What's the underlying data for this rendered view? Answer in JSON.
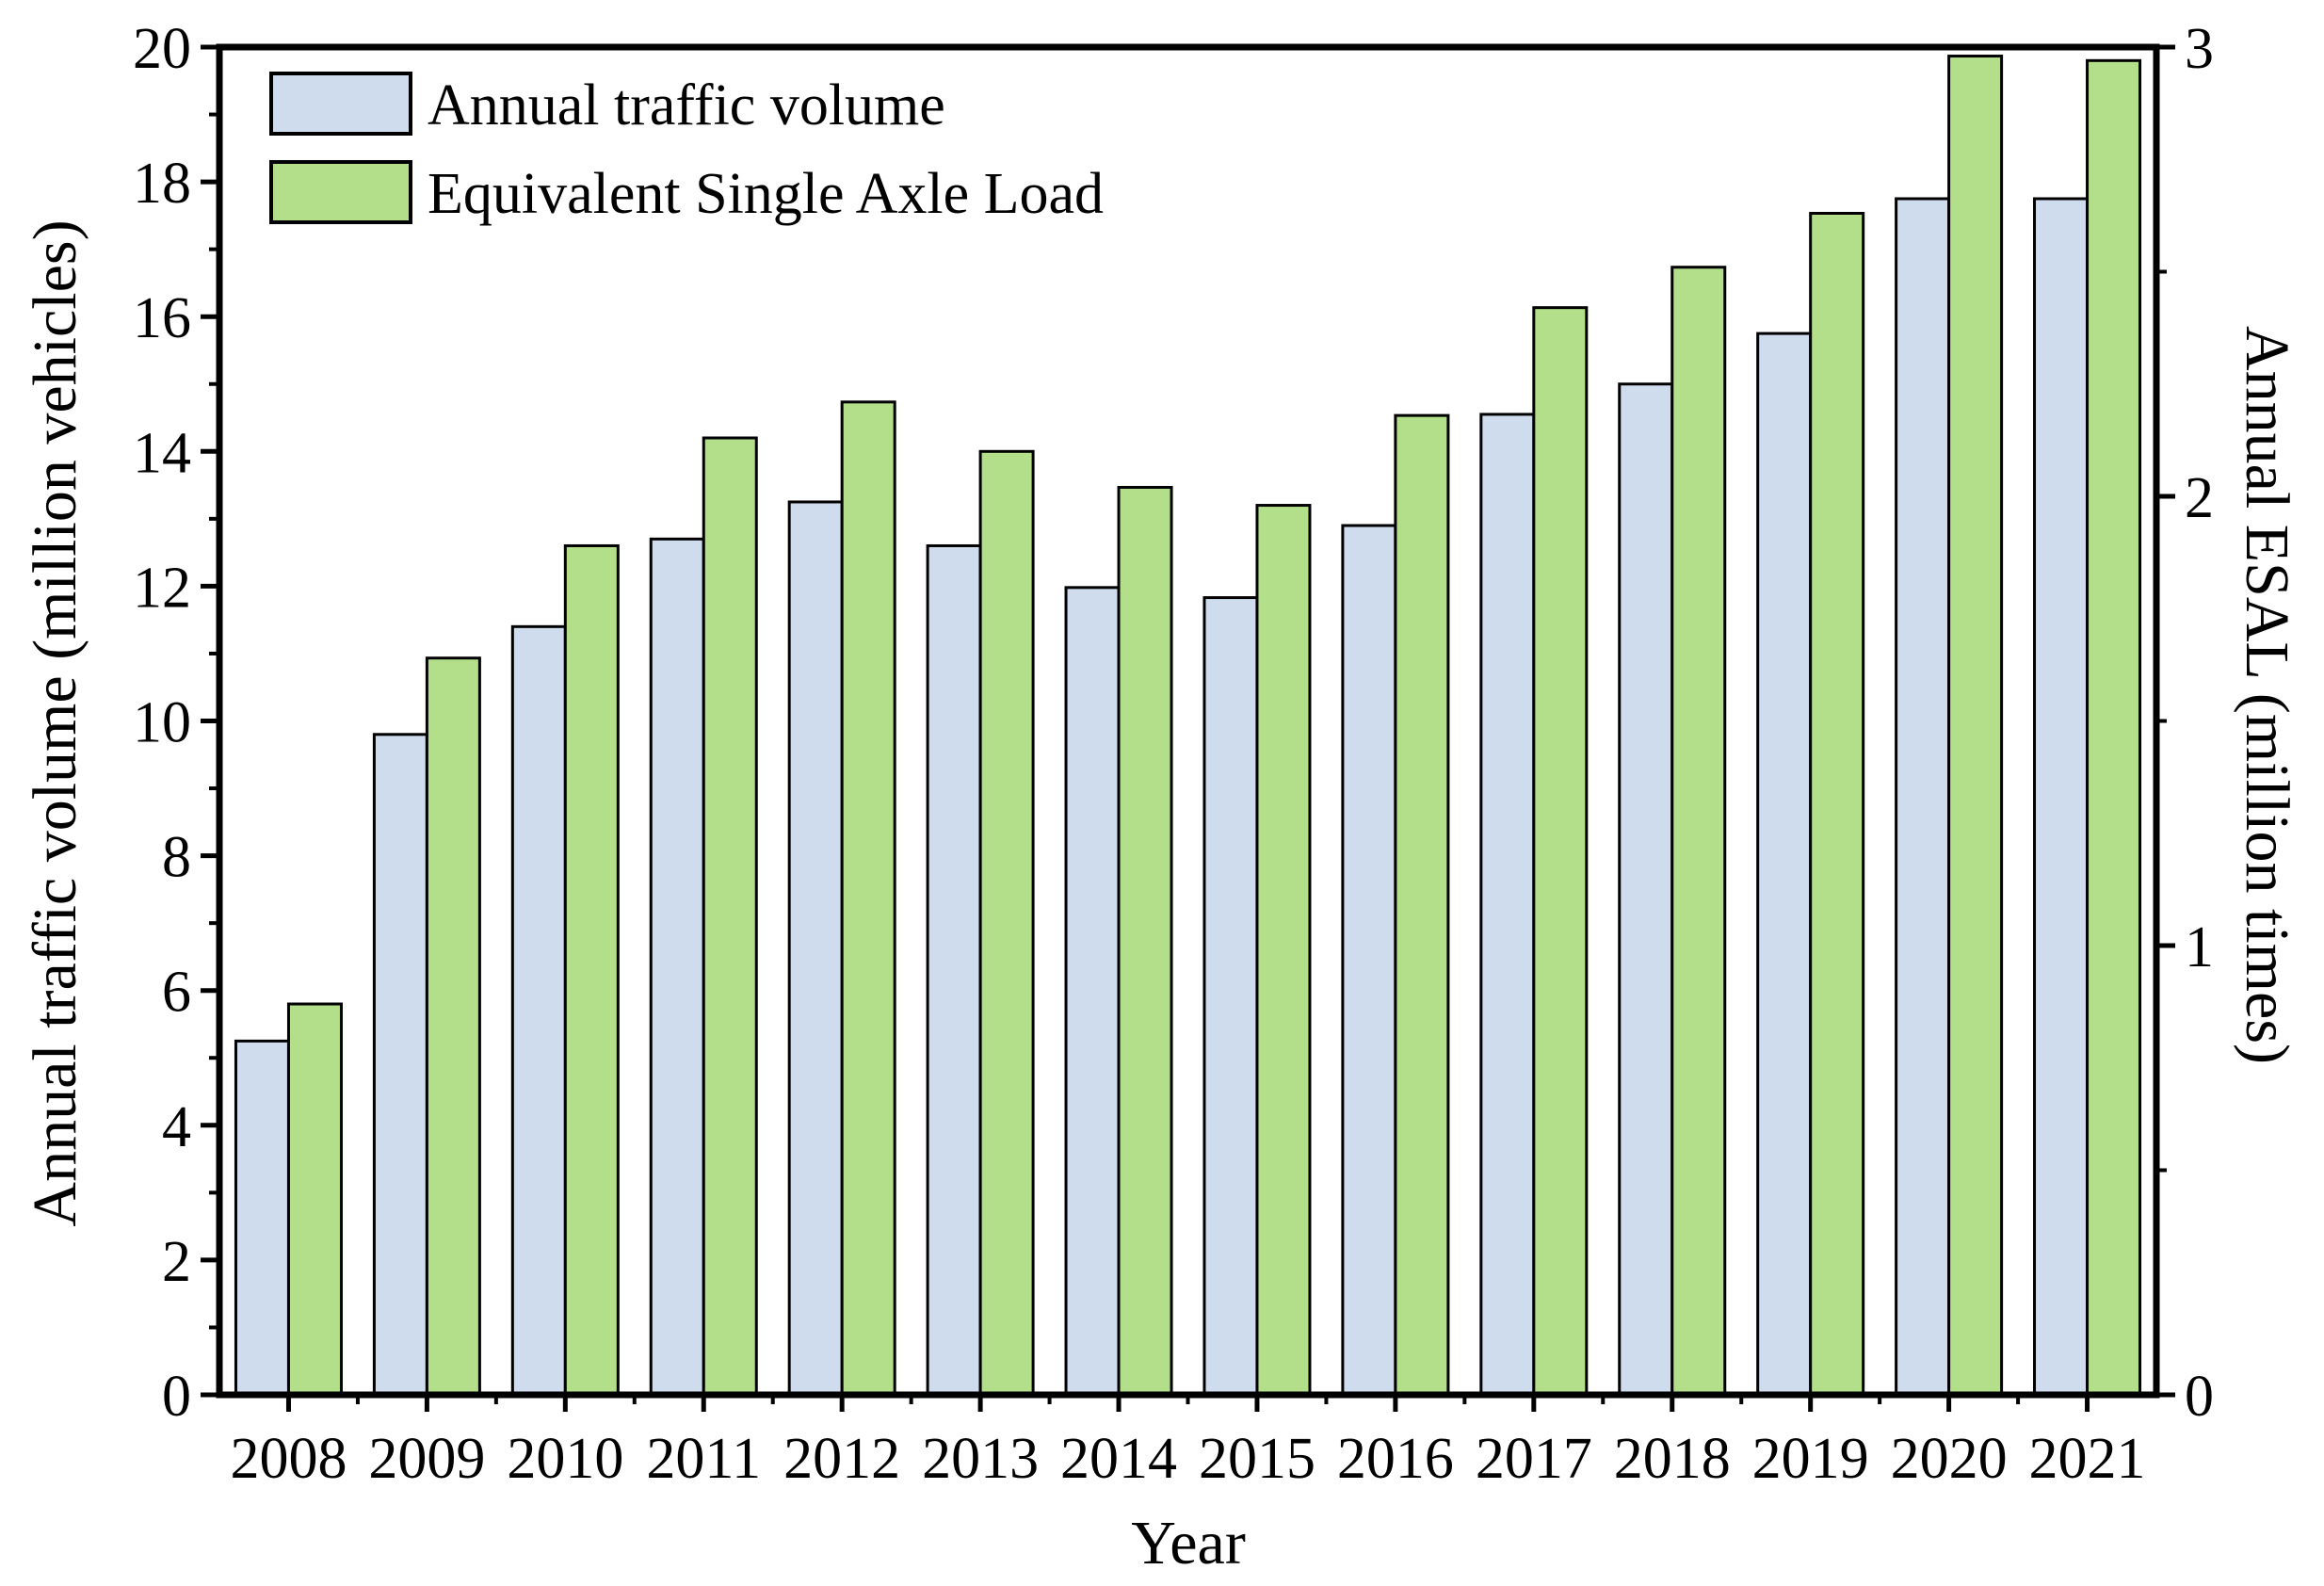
{
  "chart_data": {
    "type": "bar",
    "categories": [
      "2008",
      "2009",
      "2010",
      "2011",
      "2012",
      "2013",
      "2014",
      "2015",
      "2016",
      "2017",
      "2018",
      "2019",
      "2020",
      "2021"
    ],
    "series": [
      {
        "name": "Annual traffic volume",
        "axis": "left",
        "color": "#cfdcee",
        "values": [
          5.25,
          9.8,
          11.4,
          12.7,
          13.25,
          12.6,
          11.98,
          11.83,
          12.9,
          14.55,
          15.0,
          15.75,
          17.75,
          17.75
        ]
      },
      {
        "name": "Equivalent Single Axle Load",
        "axis": "right",
        "color": "#b3df8a",
        "values": [
          0.87,
          1.64,
          1.89,
          2.13,
          2.21,
          2.1,
          2.02,
          1.98,
          2.18,
          2.42,
          2.51,
          2.63,
          2.98,
          2.97
        ]
      }
    ],
    "xlabel": "Year",
    "ylabel": "Annual traffic volume (million vehicles)",
    "y2label": "Annual ESAL (million times)",
    "ylim": [
      0,
      20
    ],
    "y2lim": [
      0,
      3
    ],
    "yticks": [
      0,
      2,
      4,
      6,
      8,
      10,
      12,
      14,
      16,
      18,
      20
    ],
    "y2ticks": [
      0,
      1,
      2,
      3
    ],
    "legend_position": "top-left",
    "grid": false
  }
}
